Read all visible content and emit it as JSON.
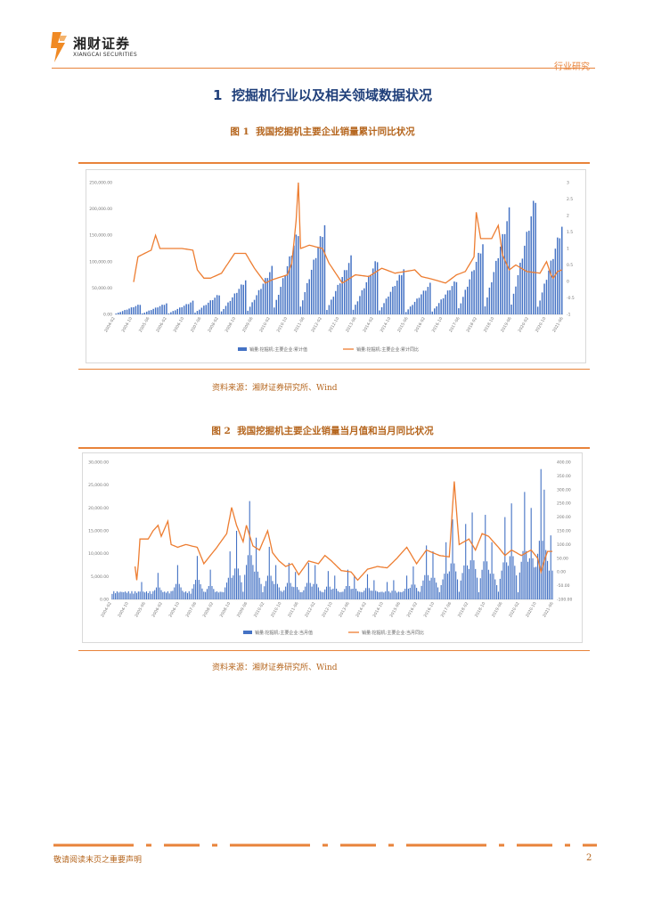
{
  "header": {
    "logo_cn": "湘财证券",
    "logo_en": "XIANGCAI SECURITIES",
    "tag": "行业研究"
  },
  "section": {
    "number": "1",
    "title": "挖掘机行业以及相关领域数据状况"
  },
  "figures": [
    {
      "label": "图 1",
      "title": "我国挖掘机主要企业销量累计同比状况",
      "source": "资料来源：湘财证券研究所、Wind"
    },
    {
      "label": "图 2",
      "title": "我国挖掘机主要企业销量当月值和当月同比状况",
      "source": "资料来源：湘财证券研究所、Wind"
    }
  ],
  "footer": {
    "note": "敬请阅读末页之重要声明",
    "page": "2"
  },
  "colors": {
    "accent": "#e8833a",
    "bar": "#4472c4",
    "line": "#ed7d31",
    "title": "#1f3f7a"
  },
  "chart_data": [
    {
      "type": "bar",
      "title": "我国挖掘机主要企业销量累计同比状况",
      "y_left_ticks": [
        "0.00",
        "50,000.00",
        "100,000.00",
        "150,000.00",
        "200,000.00",
        "250,000.00"
      ],
      "y_right_ticks": [
        "-1",
        "-0.5",
        "0",
        "0.5",
        "1",
        "1.5",
        "2",
        "2.5",
        "3"
      ],
      "ylim_left": [
        0,
        250000
      ],
      "ylim_right": [
        -1,
        3
      ],
      "legend": [
        "销量:挖掘机:主要企业:累计值",
        "销量:挖掘机:主要企业:累计同比"
      ],
      "x_start_year": 2004,
      "x_tick_labels": [
        "2004-02",
        "2004-10",
        "2005-06",
        "2006-02",
        "2006-10",
        "2007-06",
        "2008-02",
        "2008-10",
        "2009-06",
        "2010-02",
        "2010-10",
        "2011-06",
        "2012-02",
        "2012-10",
        "2013-06",
        "2014-02",
        "2014-10",
        "2015-06",
        "2016-02",
        "2016-10",
        "2017-06",
        "2018-02",
        "2018-10",
        "2019-06",
        "2020-02",
        "2020-10",
        "2021-06"
      ],
      "series": [
        {
          "name": "累计值",
          "annual_totals": [
            20000,
            22000,
            26000,
            40000,
            68000,
            92000,
            165000,
            178000,
            112000,
            110000,
            90000,
            60000,
            68000,
            140000,
            203000,
            235000,
            175000
          ]
        },
        {
          "name": "累计同比",
          "line_anchors": [
            [
              0,
              null
            ],
            [
              14,
              -0.02
            ],
            [
              16,
              0.75
            ],
            [
              27,
              0.95
            ],
            [
              30,
              1.4
            ],
            [
              33,
              1.0
            ],
            [
              50,
              1.0
            ],
            [
              58,
              0.95
            ],
            [
              62,
              0.35
            ],
            [
              66,
              0.1
            ],
            [
              72,
              0.1
            ],
            [
              80,
              0.25
            ],
            [
              90,
              0.85
            ],
            [
              97,
              0.85
            ],
            [
              104,
              0.4
            ],
            [
              112,
              -0.05
            ],
            [
              118,
              0.05
            ],
            [
              130,
              0.2
            ],
            [
              132,
              0.55
            ],
            [
              136,
              1.85
            ],
            [
              138,
              3.0
            ],
            [
              140,
              1.0
            ],
            [
              145,
              1.1
            ],
            [
              155,
              1.0
            ],
            [
              160,
              0.55
            ],
            [
              170,
              -0.05
            ],
            [
              180,
              0.2
            ],
            [
              190,
              0.15
            ],
            [
              200,
              0.4
            ],
            [
              210,
              0.25
            ],
            [
              225,
              0.35
            ],
            [
              230,
              0.15
            ],
            [
              240,
              0.05
            ],
            [
              248,
              -0.05
            ],
            [
              256,
              0.2
            ],
            [
              264,
              0.3
            ],
            [
              270,
              0.75
            ],
            [
              272,
              2.1
            ],
            [
              275,
              1.3
            ],
            [
              284,
              1.3
            ],
            [
              288,
              1.7
            ],
            [
              292,
              0.8
            ],
            [
              296,
              0.35
            ],
            [
              302,
              0.5
            ],
            [
              310,
              0.3
            ],
            [
              320,
              0.25
            ],
            [
              324,
              0.6
            ],
            [
              328,
              0.2
            ],
            [
              330,
              0.1
            ],
            [
              333,
              0.3
            ],
            [
              336,
              0.35
            ]
          ]
        }
      ]
    },
    {
      "type": "bar",
      "title": "我国挖掘机主要企业销量当月值和当月同比状况",
      "y_left_ticks": [
        "0.00",
        "5,000.00",
        "10,000.00",
        "15,000.00",
        "20,000.00",
        "25,000.00",
        "30,000.00"
      ],
      "y_right_ticks": [
        "-100.00",
        "-50.00",
        "0.00",
        "50.00",
        "100.00",
        "150.00",
        "200.00",
        "250.00",
        "300.00",
        "350.00",
        "400.00"
      ],
      "ylim_left": [
        0,
        30000
      ],
      "ylim_right": [
        -100,
        400
      ],
      "legend": [
        "销量:挖掘机:主要企业:当月值",
        "销量:挖掘机:主要企业:当月同比"
      ],
      "x_tick_labels": [
        "2004-02",
        "2004-10",
        "2005-06",
        "2006-02",
        "2006-10",
        "2007-06",
        "2008-02",
        "2008-10",
        "2009-06",
        "2010-02",
        "2010-10",
        "2011-06",
        "2012-02",
        "2012-10",
        "2013-06",
        "2014-02",
        "2014-10",
        "2015-06",
        "2016-02",
        "2016-10",
        "2017-06",
        "2018-02",
        "2018-10",
        "2019-06",
        "2020-02",
        "2020-10",
        "2021-06"
      ],
      "series": [
        {
          "name": "当月值",
          "peak_months": [
            [
              18,
              3800
            ],
            [
              28,
              5800
            ],
            [
              40,
              7500
            ],
            [
              52,
              9500
            ],
            [
              60,
              6500
            ],
            [
              72,
              10500
            ],
            [
              76,
              15000
            ],
            [
              84,
              21500
            ],
            [
              88,
              13500
            ],
            [
              96,
              11500
            ],
            [
              100,
              7500
            ],
            [
              108,
              8000
            ],
            [
              112,
              6000
            ],
            [
              120,
              8000
            ],
            [
              124,
              7500
            ],
            [
              132,
              6200
            ],
            [
              136,
              5200
            ],
            [
              144,
              6500
            ],
            [
              148,
              5200
            ],
            [
              156,
              5500
            ],
            [
              160,
              4200
            ],
            [
              168,
              3800
            ],
            [
              172,
              4200
            ],
            [
              180,
              5200
            ],
            [
              184,
              7200
            ],
            [
              192,
              11800
            ],
            [
              196,
              10500
            ],
            [
              204,
              12500
            ],
            [
              208,
              17500
            ],
            [
              216,
              16500
            ],
            [
              220,
              19000
            ],
            [
              228,
              18500
            ],
            [
              232,
              12500
            ],
            [
              240,
              18000
            ],
            [
              244,
              21000
            ],
            [
              252,
              23500
            ],
            [
              256,
              20000
            ],
            [
              262,
              28500
            ],
            [
              264,
              24000
            ],
            [
              268,
              14000
            ]
          ]
        },
        {
          "name": "当月同比",
          "line_anchors": [
            [
              0,
              null
            ],
            [
              14,
              20
            ],
            [
              15,
              -30
            ],
            [
              16,
              30
            ],
            [
              17,
              120
            ],
            [
              22,
              120
            ],
            [
              25,
              150
            ],
            [
              28,
              170
            ],
            [
              30,
              130
            ],
            [
              34,
              185
            ],
            [
              36,
              100
            ],
            [
              40,
              90
            ],
            [
              45,
              100
            ],
            [
              52,
              90
            ],
            [
              56,
              30
            ],
            [
              60,
              60
            ],
            [
              64,
              90
            ],
            [
              70,
              140
            ],
            [
              73,
              235
            ],
            [
              76,
              170
            ],
            [
              80,
              110
            ],
            [
              82,
              170
            ],
            [
              86,
              95
            ],
            [
              90,
              80
            ],
            [
              95,
              150
            ],
            [
              98,
              70
            ],
            [
              102,
              40
            ],
            [
              106,
              20
            ],
            [
              110,
              30
            ],
            [
              114,
              -10
            ],
            [
              120,
              40
            ],
            [
              126,
              30
            ],
            [
              130,
              60
            ],
            [
              134,
              40
            ],
            [
              140,
              5
            ],
            [
              146,
              0
            ],
            [
              150,
              -30
            ],
            [
              156,
              10
            ],
            [
              162,
              20
            ],
            [
              168,
              15
            ],
            [
              174,
              50
            ],
            [
              180,
              90
            ],
            [
              186,
              30
            ],
            [
              192,
              80
            ],
            [
              200,
              60
            ],
            [
              206,
              55
            ],
            [
              209,
              330
            ],
            [
              212,
              100
            ],
            [
              218,
              120
            ],
            [
              222,
              80
            ],
            [
              226,
              140
            ],
            [
              230,
              130
            ],
            [
              236,
              90
            ],
            [
              240,
              60
            ],
            [
              244,
              80
            ],
            [
              250,
              60
            ],
            [
              256,
              80
            ],
            [
              260,
              50
            ],
            [
              262,
              0
            ],
            [
              264,
              40
            ],
            [
              266,
              75
            ]
          ]
        }
      ]
    }
  ]
}
